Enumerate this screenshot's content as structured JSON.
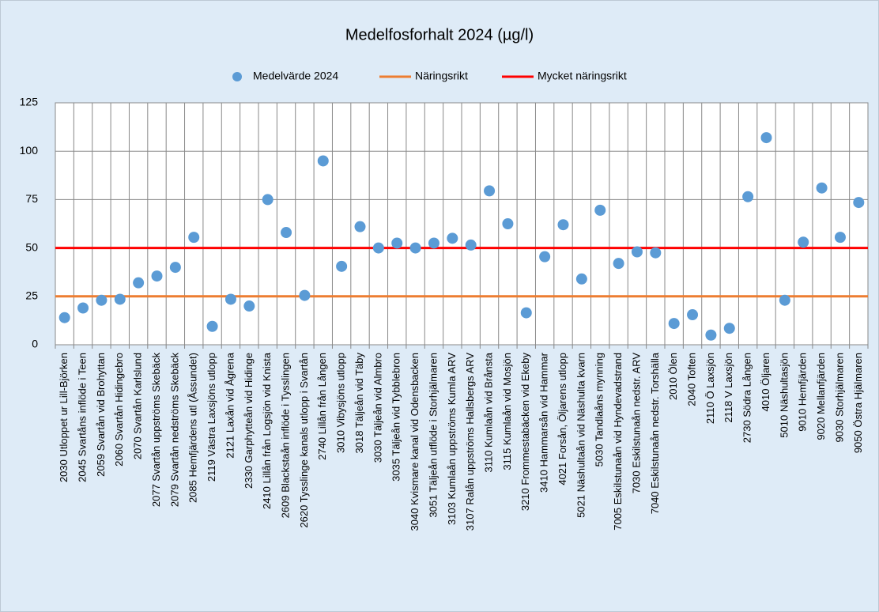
{
  "chart_data": {
    "type": "scatter",
    "title": "Medelfosforhalt 2024 (µg/l)",
    "categories": [
      "2030 Utloppet ur Lill-Björken",
      "2045 Svartåns inflöde i Teen",
      "2059 Svartån vid Brohyttan",
      "2060 Svartån Hidingebro",
      "2070 Svartån Karlslund",
      "2077 Svartån uppströms Skebäck",
      "2079 Svartån nedströms Skebäck",
      "2085 Hemfjärdens utl (Åssundet)",
      "2119 Västra Laxsjöns utlopp",
      "2121 Laxån vid Ågrena",
      "2330 Garphytteån vid Hidinge",
      "2410 Lillån från Logsjön vid Knista",
      "2609 Blackstaån inflöde i Tysslingen",
      "2620 Tysslinge kanals utlopp i Svartån",
      "2740 Lillån från Lången",
      "3010 Vibysjöns utlopp",
      "3018 Täljeån vid Täby",
      "3030 Täljeån vid Almbro",
      "3035 Täljeån vid Tybblebron",
      "3040 Kvismare kanal vid Odensbacken",
      "3051 Täljeån utflöde i Storhjälmaren",
      "3103 Kumlaån uppströms Kumla ARV",
      "3107 Ralån uppströms Hallsbergs ARV",
      "3110 Kumlaån vid Brånsta",
      "3115 Kumlaån vid Mosjön",
      "3210 Frommestabäcken vid Ekeby",
      "3410 Hammarsån vid Hammar",
      "4021 Forsån, Öljarens utlopp",
      "5021 Näshultaån vid Näshulta kvarn",
      "5030 Tandlaåns mynning",
      "7005 Eskilstunaån vid Hyndevadstrand",
      "7030 Eskilstunaån nedstr. ARV",
      "7040 Eskilstunaån nedstr. Torshälla",
      "2010 Ölen",
      "2040 Toften",
      "2110 Ö Laxsjön",
      "2118 V Laxsjön",
      "2730 Södra Lången",
      "4010 Öljaren",
      "5010 Näshultasjön",
      "9010 Hemfjärden",
      "9020 Mellanfjärden",
      "9030 Storhjälmaren",
      "9050 Östra Hjälmaren"
    ],
    "series": [
      {
        "name": "Medelvärde 2024",
        "color": "#5b9bd5",
        "values": [
          14,
          19,
          23,
          23.5,
          32,
          35.5,
          40,
          55.5,
          9.5,
          23.5,
          20,
          75,
          58,
          25.5,
          95,
          40.5,
          61,
          50,
          52.5,
          50,
          52.5,
          55,
          51.5,
          79.5,
          62.5,
          16.5,
          45.5,
          62,
          34,
          69.5,
          42,
          48,
          47.5,
          11,
          15.5,
          5,
          8.5,
          76.5,
          107,
          23,
          53,
          81,
          55.5,
          73.5
        ]
      },
      {
        "name": "Näringsrikt",
        "color": "#ed7d31",
        "value": 25
      },
      {
        "name": "Mycket näringsrikt",
        "color": "#ff0000",
        "value": 50
      }
    ],
    "ylim": [
      0,
      125
    ],
    "yticks": [
      0,
      25,
      50,
      75,
      100,
      125
    ],
    "grid": true
  }
}
